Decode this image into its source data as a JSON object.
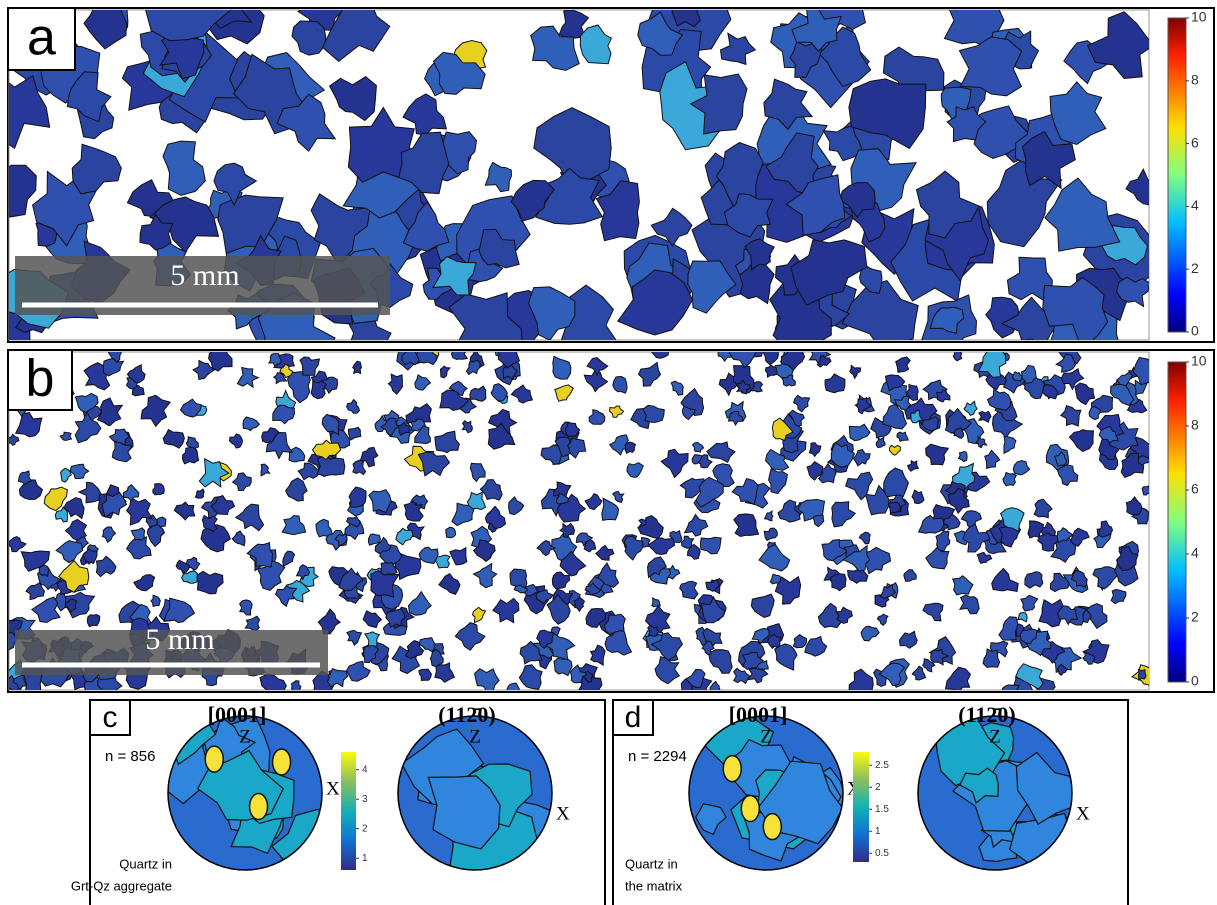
{
  "panels": [
    {
      "label": "a",
      "scale_bar": "5 mm",
      "colorbar": {
        "range": [
          0,
          10
        ],
        "ticks": [
          0,
          2,
          4,
          6,
          8,
          10
        ]
      }
    },
    {
      "label": "b",
      "scale_bar": "5 mm",
      "colorbar": {
        "range": [
          0,
          10
        ],
        "ticks": [
          0,
          2,
          4,
          6,
          8,
          10
        ]
      }
    }
  ],
  "pole_figures": [
    {
      "label": "c",
      "n": "n = 856",
      "caption": [
        "Quartz in",
        "Grt-Qz aggregate"
      ],
      "colorbar": {
        "range": [
          0.6,
          4.6
        ],
        "ticks": [
          1,
          2,
          3,
          4
        ]
      },
      "plots": [
        {
          "title": "[0001]",
          "z": "Z",
          "x": "X"
        },
        {
          "title": "(112̄0)",
          "z": "Z",
          "x": "X"
        }
      ]
    },
    {
      "label": "d",
      "n": "n = 2294",
      "caption": [
        "Quartz in",
        "the matrix"
      ],
      "colorbar": {
        "range": [
          0.3,
          2.8
        ],
        "ticks": [
          0.5,
          1,
          1.5,
          2,
          2.5
        ]
      },
      "plots": [
        {
          "title": "[0001]",
          "z": "Z",
          "x": "X"
        },
        {
          "title": "(112̄0)",
          "z": "Z",
          "x": "X"
        }
      ]
    }
  ]
}
